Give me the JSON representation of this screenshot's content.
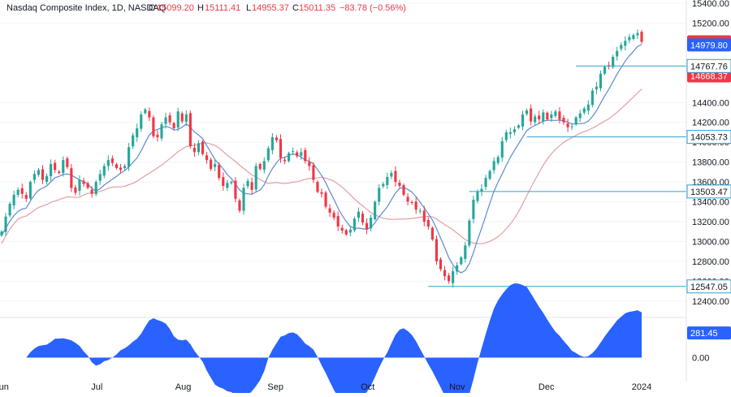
{
  "header": {
    "symbol": "Nasdaq Composite Index, 1D, NASDAQ",
    "o_label": "O",
    "o_value": "15099.20",
    "h_label": "H",
    "h_value": "15111.41",
    "l_label": "L",
    "l_value": "14955.37",
    "c_label": "C",
    "c_value": "15011.35",
    "change": "−83.78 (−0.56%)"
  },
  "colors": {
    "up": "#26a69a",
    "down": "#f23645",
    "ma_fast": "#5b8ad4",
    "ma_slow": "#e39ea4",
    "level_line": "#2aa3c9",
    "osc": "#2962ff",
    "tag_blue": "#2962ff",
    "tag_red": "#f23645"
  },
  "chart_data": {
    "type": "candlestick",
    "ylim": [
      12300,
      15400
    ],
    "yticks": [
      "15400.00",
      "15200.00",
      "14400.00",
      "14200.00",
      "14000.00",
      "13800.00",
      "13600.00",
      "13400.00",
      "13200.00",
      "13000.00",
      "12800.00",
      "12600.00",
      "12400.00"
    ],
    "yticks_values": [
      15400,
      15200,
      14400,
      14200,
      14000,
      13800,
      13600,
      13400,
      13200,
      13000,
      12800,
      12600,
      12400
    ],
    "xticks": [
      {
        "label": "Jun",
        "date": "2023-06-01"
      },
      {
        "label": "Jul",
        "date": "2023-07-03"
      },
      {
        "label": "Aug",
        "date": "2023-08-01"
      },
      {
        "label": "Sep",
        "date": "2023-09-01"
      },
      {
        "label": "Oct",
        "date": "2023-10-02"
      },
      {
        "label": "Nov",
        "date": "2023-11-01"
      },
      {
        "label": "Dec",
        "date": "2023-12-01"
      },
      {
        "label": "2024",
        "date": "2024-01-02"
      }
    ],
    "closes": [
      13100,
      13250,
      13380,
      13470,
      13520,
      13480,
      13430,
      13600,
      13680,
      13720,
      13620,
      13660,
      13780,
      13720,
      13690,
      13820,
      13750,
      13540,
      13490,
      13620,
      13580,
      13540,
      13480,
      13600,
      13680,
      13760,
      13820,
      13790,
      13740,
      13720,
      13760,
      13950,
      14070,
      14140,
      14280,
      14330,
      14250,
      14060,
      14050,
      14180,
      14250,
      14200,
      14140,
      14310,
      14210,
      14280,
      13960,
      13900,
      13990,
      13880,
      13820,
      13730,
      13780,
      13640,
      13560,
      13590,
      13600,
      13430,
      13310,
      13540,
      13610,
      13520,
      13760,
      13730,
      13810,
      13940,
      14050,
      14020,
      13840,
      13810,
      13890,
      13910,
      13860,
      13900,
      13810,
      13760,
      13620,
      13500,
      13480,
      13350,
      13290,
      13240,
      13150,
      13110,
      13070,
      13120,
      13230,
      13300,
      13190,
      13120,
      13240,
      13400,
      13540,
      13580,
      13650,
      13690,
      13600,
      13560,
      13470,
      13400,
      13390,
      13320,
      13310,
      13200,
      13150,
      13020,
      12800,
      12720,
      12650,
      12600,
      12700,
      12760,
      12840,
      12960,
      13210,
      13420,
      13500,
      13530,
      13640,
      13710,
      13810,
      13850,
      14010,
      14100,
      14100,
      14130,
      14170,
      14280,
      14320,
      14210,
      14260,
      14230,
      14300,
      14230,
      14280,
      14310,
      14230,
      14200,
      14150,
      14160,
      14250,
      14290,
      14340,
      14380,
      14520,
      14560,
      14690,
      14760,
      14770,
      14860,
      14920,
      14980,
      15020,
      15060,
      15080,
      15100,
      15011
    ],
    "levels": [
      {
        "label": "14767.76",
        "value": 14767.76,
        "from_index": 140
      },
      {
        "label": "14053.73",
        "value": 14053.73,
        "from_index": 128
      },
      {
        "label": "13503.47",
        "value": 13503.47,
        "from_index": 114
      },
      {
        "label": "12547.05",
        "value": 12547.05,
        "from_index": 104
      }
    ],
    "price_tags": [
      {
        "label": "15011.35",
        "value": 15011.35,
        "color": "down"
      },
      {
        "label": "14979.80",
        "value": 14979.8,
        "color": "tag_blue"
      },
      {
        "label": "14668.37",
        "value": 14668.37,
        "color": "down"
      }
    ],
    "oscillator": {
      "last_label": "281.45",
      "zero_label": "0.00",
      "last_value": 281.45,
      "zero_value": 0,
      "ylim": [
        -200,
        450
      ]
    }
  }
}
